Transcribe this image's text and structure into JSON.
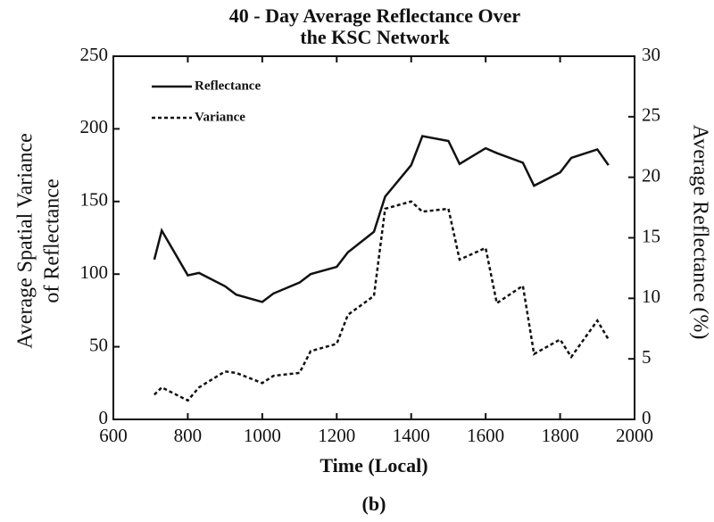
{
  "chart_data": {
    "type": "line",
    "title": [
      "40 - Day Average Reflectance Over",
      "the KSC Network"
    ],
    "x_label": "Time (Local)",
    "y_label": [
      "Average Spatial Variance",
      "of Reflectance"
    ],
    "y2_label": "Average Reflectance (%)",
    "caption": "(b)",
    "x": [
      710,
      730,
      800,
      830,
      900,
      930,
      1000,
      1030,
      1100,
      1130,
      1200,
      1230,
      1300,
      1330,
      1400,
      1430,
      1500,
      1530,
      1600,
      1630,
      1700,
      1730,
      1800,
      1830,
      1900,
      1930
    ],
    "series": [
      {
        "name": "Reflectance",
        "color": "#111111",
        "dash": "solid",
        "axis": "y2",
        "values": [
          13.2,
          15.6,
          11.9,
          12.1,
          11.0,
          10.3,
          9.7,
          10.4,
          11.3,
          12.0,
          12.6,
          13.8,
          15.5,
          18.4,
          21.0,
          23.4,
          23.0,
          21.1,
          22.4,
          22.0,
          21.2,
          19.3,
          20.4,
          21.6,
          22.3,
          21.0
        ]
      },
      {
        "name": "Variance",
        "color": "#111111",
        "dash": "dotted",
        "values": [
          17,
          22,
          13,
          22,
          33,
          32,
          25,
          30,
          32,
          47,
          52,
          72,
          85,
          145,
          150,
          143,
          145,
          110,
          118,
          80,
          92,
          45,
          55,
          43,
          68,
          55
        ]
      }
    ],
    "xlim": [
      600,
      2000
    ],
    "xticks": [
      600,
      800,
      1000,
      1200,
      1400,
      1600,
      1800,
      2000
    ],
    "ylim": [
      0,
      250
    ],
    "yticks": [
      0,
      50,
      100,
      150,
      200,
      250
    ],
    "y2lim": [
      0,
      30
    ],
    "y2ticks": [
      0,
      5,
      10,
      15,
      20,
      25,
      30
    ],
    "legend": "upper left",
    "grid": false
  }
}
